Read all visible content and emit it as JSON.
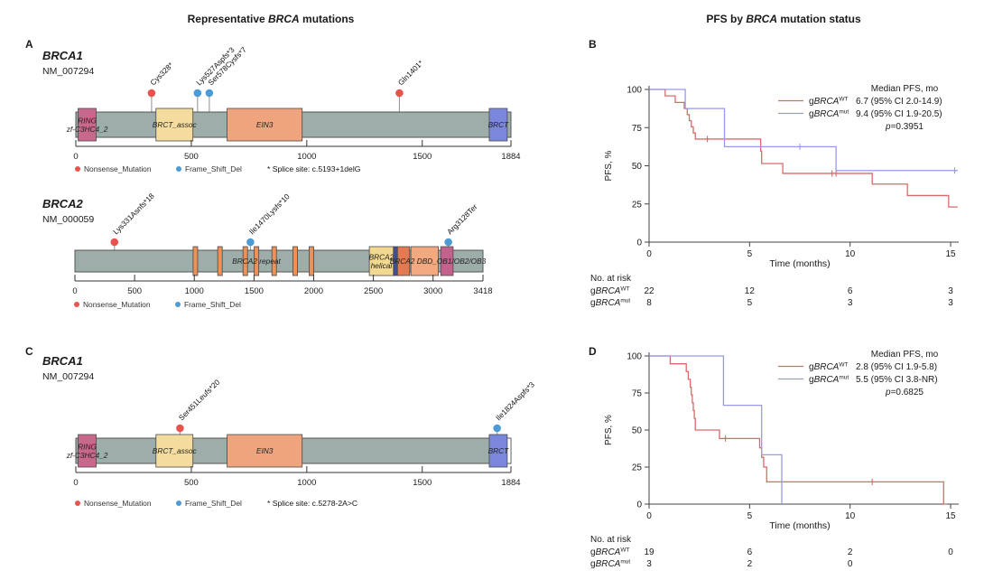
{
  "figure_titles": {
    "left_pre": "Representative ",
    "left_em": "BRCA",
    "left_post": " mutations",
    "right_pre": "PFS by ",
    "right_em": "BRCA",
    "right_post": " mutation status"
  },
  "panel_labels": {
    "a": "A",
    "b": "B",
    "c": "C",
    "d": "D"
  },
  "colors": {
    "nonsense": "#e8534e",
    "frame_shift": "#4d9bd5",
    "km_wt": "#d96a6a",
    "km_mut": "#9a99e8",
    "protein_bar": "#9dada9",
    "bar_border": "#555555"
  },
  "chart_data": [
    {
      "id": "panelA_BRCA1",
      "type": "lollipop",
      "gene": "BRCA1",
      "transcript": "NM_007294",
      "xmax": 1884,
      "xticks": [
        0,
        500,
        1000,
        1500,
        1884
      ],
      "domains": [
        {
          "label": "RING",
          "sublabel": "zf-C3HC4_2",
          "start": 10,
          "end": 88,
          "color": "#c7688c"
        },
        {
          "label": "BRCT_assoc",
          "start": 347,
          "end": 507,
          "color": "#f3dc9e"
        },
        {
          "label": "EIN3",
          "start": 655,
          "end": 980,
          "color": "#efa47e"
        },
        {
          "label": "BRCT",
          "start": 1790,
          "end": 1868,
          "color": "#7b87dd"
        }
      ],
      "mutations": [
        {
          "label": "Cys328*",
          "pos": 328,
          "type": "Nonsense_Mutation"
        },
        {
          "label": "Lys527Aspfs*3",
          "pos": 527,
          "type": "Frame_Shift_Del"
        },
        {
          "label": "Ser578Cysfs*7",
          "pos": 578,
          "type": "Frame_Shift_Del"
        },
        {
          "label": "Gln1401*",
          "pos": 1401,
          "type": "Nonsense_Mutation"
        }
      ],
      "legend": [
        {
          "label": "Nonsense_Mutation",
          "color_key": "nonsense"
        },
        {
          "label": "Frame_Shift_Del",
          "color_key": "frame_shift"
        }
      ],
      "note": "* Splice site: c.5193+1delG"
    },
    {
      "id": "panelA_BRCA2",
      "type": "lollipop",
      "gene": "BRCA2",
      "transcript": "NM_000059",
      "xmax": 3418,
      "xticks": [
        0,
        500,
        1000,
        1500,
        2000,
        2500,
        3000,
        3418
      ],
      "domains": [
        {
          "start": 990,
          "end": 1028,
          "color": "#ef9057"
        },
        {
          "start": 1196,
          "end": 1234,
          "color": "#ef9057"
        },
        {
          "start": 1408,
          "end": 1446,
          "color": "#ef9057"
        },
        {
          "start": 1502,
          "end": 1540,
          "color": "#ef9057"
        },
        {
          "start": 1650,
          "end": 1688,
          "color": "#ef9057"
        },
        {
          "start": 1826,
          "end": 1864,
          "color": "#ef9057"
        },
        {
          "start": 1962,
          "end": 2000,
          "color": "#ef9057"
        },
        {
          "label": "BRCA2",
          "sublabel": "helical",
          "start": 2466,
          "end": 2668,
          "color": "#f3d98f"
        },
        {
          "start": 2668,
          "end": 2702,
          "color": "#3f4f9b"
        },
        {
          "start": 2702,
          "end": 2804,
          "color": "#e37a52"
        },
        {
          "start": 2814,
          "end": 3044,
          "color": "#f3a97f"
        },
        {
          "start": 3064,
          "end": 3168,
          "color": "#c4618d"
        }
      ],
      "bar_labels": [
        {
          "text": "BRCA2 repeat",
          "aa": 1520
        },
        {
          "text": "BRCA2 DBD_OB1/OB2/OB3",
          "aa": 3040
        }
      ],
      "mutations": [
        {
          "label": "Lys331Asnfs*18",
          "pos": 331,
          "type": "Nonsense_Mutation"
        },
        {
          "label": "Ile1470Lysfs*10",
          "pos": 1470,
          "type": "Frame_Shift_Del"
        },
        {
          "label": "Arg3128Ter",
          "pos": 3128,
          "type": "Frame_Shift_Del"
        }
      ],
      "legend": [
        {
          "label": "Nonsense_Mutation",
          "color_key": "nonsense"
        },
        {
          "label": "Frame_Shift_Del",
          "color_key": "frame_shift"
        }
      ],
      "note": null
    },
    {
      "id": "panelB_KM",
      "type": "km",
      "ylabel": "PFS, %",
      "xlabel": "Time (months)",
      "yticks": [
        0,
        25,
        50,
        75,
        100
      ],
      "xticks": [
        0,
        5,
        10,
        15
      ],
      "xmax": 15.4,
      "legend_header": "Median PFS, mo",
      "p_em": "p",
      "p_rest": "=0.3951",
      "series": [
        {
          "name_pre": "g",
          "name_em": "BRCA",
          "name_sup": "WT",
          "color_key": "km_wt",
          "median": "6.7 (95% CI 2.0-14.9)",
          "start": 100,
          "end_time": 15.35,
          "events": [
            [
              0.8,
              95.8
            ],
            [
              1.3,
              91.5
            ],
            [
              1.75,
              87.5
            ],
            [
              1.9,
              83.5
            ],
            [
              2.0,
              79.5
            ],
            [
              2.1,
              75.5
            ],
            [
              2.2,
              71.5
            ],
            [
              2.3,
              67.5
            ],
            [
              5.55,
              59.5
            ],
            [
              5.6,
              51.5
            ],
            [
              6.65,
              45
            ],
            [
              11.1,
              38
            ],
            [
              12.85,
              30.5
            ],
            [
              14.9,
              23
            ]
          ],
          "censors": [
            [
              2.9,
              67.5
            ],
            [
              9.1,
              45
            ],
            [
              9.3,
              45
            ]
          ]
        },
        {
          "name_pre": "g",
          "name_em": "BRCA",
          "name_sup": "mut",
          "color_key": "km_mut",
          "median": "9.4 (95% CI 1.9-20.5)",
          "start": 100,
          "end_time": 15.35,
          "events": [
            [
              1.8,
              87.5
            ],
            [
              3.75,
              62.5
            ],
            [
              9.3,
              46.9
            ]
          ],
          "censors": [
            [
              7.5,
              62.5
            ],
            [
              15.2,
              46.9
            ]
          ]
        }
      ],
      "risk_table": {
        "header": "No. at risk",
        "times": [
          0,
          5,
          10,
          15
        ],
        "rows": [
          {
            "name_pre": "g",
            "name_em": "BRCA",
            "name_sup": "WT",
            "values": [
              "22",
              "12",
              "6",
              "3"
            ]
          },
          {
            "name_pre": "g",
            "name_em": "BRCA",
            "name_sup": "mut",
            "values": [
              "8",
              "5",
              "3",
              "3"
            ]
          }
        ]
      }
    },
    {
      "id": "panelC_BRCA1",
      "type": "lollipop",
      "gene": "BRCA1",
      "transcript": "NM_007294",
      "xmax": 1884,
      "xticks": [
        0,
        500,
        1000,
        1500,
        1884
      ],
      "domains": [
        {
          "label": "RING",
          "sublabel": "zf-C3HC4_2",
          "start": 10,
          "end": 88,
          "color": "#c7688c"
        },
        {
          "label": "BRCT_assoc",
          "start": 347,
          "end": 507,
          "color": "#f3dc9e"
        },
        {
          "label": "EIN3",
          "start": 655,
          "end": 980,
          "color": "#efa47e"
        },
        {
          "label": "BRCT",
          "start": 1790,
          "end": 1868,
          "color": "#7b87dd"
        }
      ],
      "end_cap": {
        "start": 1863,
        "end": 1884
      },
      "mutations": [
        {
          "label": "Ser451Leufs*20",
          "pos": 451,
          "type": "Nonsense_Mutation"
        },
        {
          "label": "Ile1824Aspfs*3",
          "pos": 1824,
          "type": "Frame_Shift_Del"
        }
      ],
      "legend": [
        {
          "label": "Nonsense_Mutation",
          "color_key": "nonsense"
        },
        {
          "label": "Frame_Shift_Del",
          "color_key": "frame_shift"
        }
      ],
      "note": "* Splice site: c.5278-2A>C"
    },
    {
      "id": "panelD_KM",
      "type": "km",
      "ylabel": "PFS, %",
      "xlabel": "Time (months)",
      "yticks": [
        0,
        25,
        50,
        75,
        100
      ],
      "xticks": [
        0,
        5,
        10,
        15
      ],
      "xmax": 15.4,
      "legend_header": "Median PFS, mo",
      "p_em": "p",
      "p_rest": "=0.6825",
      "series": [
        {
          "name_pre": "g",
          "name_em": "BRCA",
          "name_sup": "WT",
          "color_key": "km_wt",
          "median": "2.8 (95% CI 1.9-5.8)",
          "start": 100,
          "end_time": 14.8,
          "events": [
            [
              1.05,
              94.7
            ],
            [
              1.85,
              89.5
            ],
            [
              1.95,
              84.2
            ],
            [
              2.05,
              78.9
            ],
            [
              2.1,
              73.7
            ],
            [
              2.15,
              68.4
            ],
            [
              2.2,
              63.2
            ],
            [
              2.25,
              57.9
            ],
            [
              2.3,
              50
            ],
            [
              3.5,
              44.3
            ],
            [
              5.5,
              38
            ],
            [
              5.6,
              31.6
            ],
            [
              5.7,
              25
            ],
            [
              5.85,
              15
            ],
            [
              14.65,
              0
            ]
          ],
          "censors": [
            [
              3.8,
              44.3
            ],
            [
              11.1,
              15
            ]
          ]
        },
        {
          "name_pre": "g",
          "name_em": "BRCA",
          "name_sup": "mut",
          "color_key": "km_mut",
          "median": "5.5 (95% CI 3.8-NR)",
          "start": 100,
          "end_time": 6.6,
          "events": [
            [
              3.7,
              66.7
            ],
            [
              5.6,
              33.3
            ],
            [
              6.6,
              0
            ]
          ],
          "censors": []
        }
      ],
      "risk_table": {
        "header": "No. at risk",
        "times": [
          0,
          5,
          10,
          15
        ],
        "rows": [
          {
            "name_pre": "g",
            "name_em": "BRCA",
            "name_sup": "WT",
            "values": [
              "19",
              "6",
              "2",
              "0"
            ]
          },
          {
            "name_pre": "g",
            "name_em": "BRCA",
            "name_sup": "mut",
            "values": [
              "3",
              "2",
              "0",
              ""
            ]
          }
        ]
      }
    }
  ]
}
